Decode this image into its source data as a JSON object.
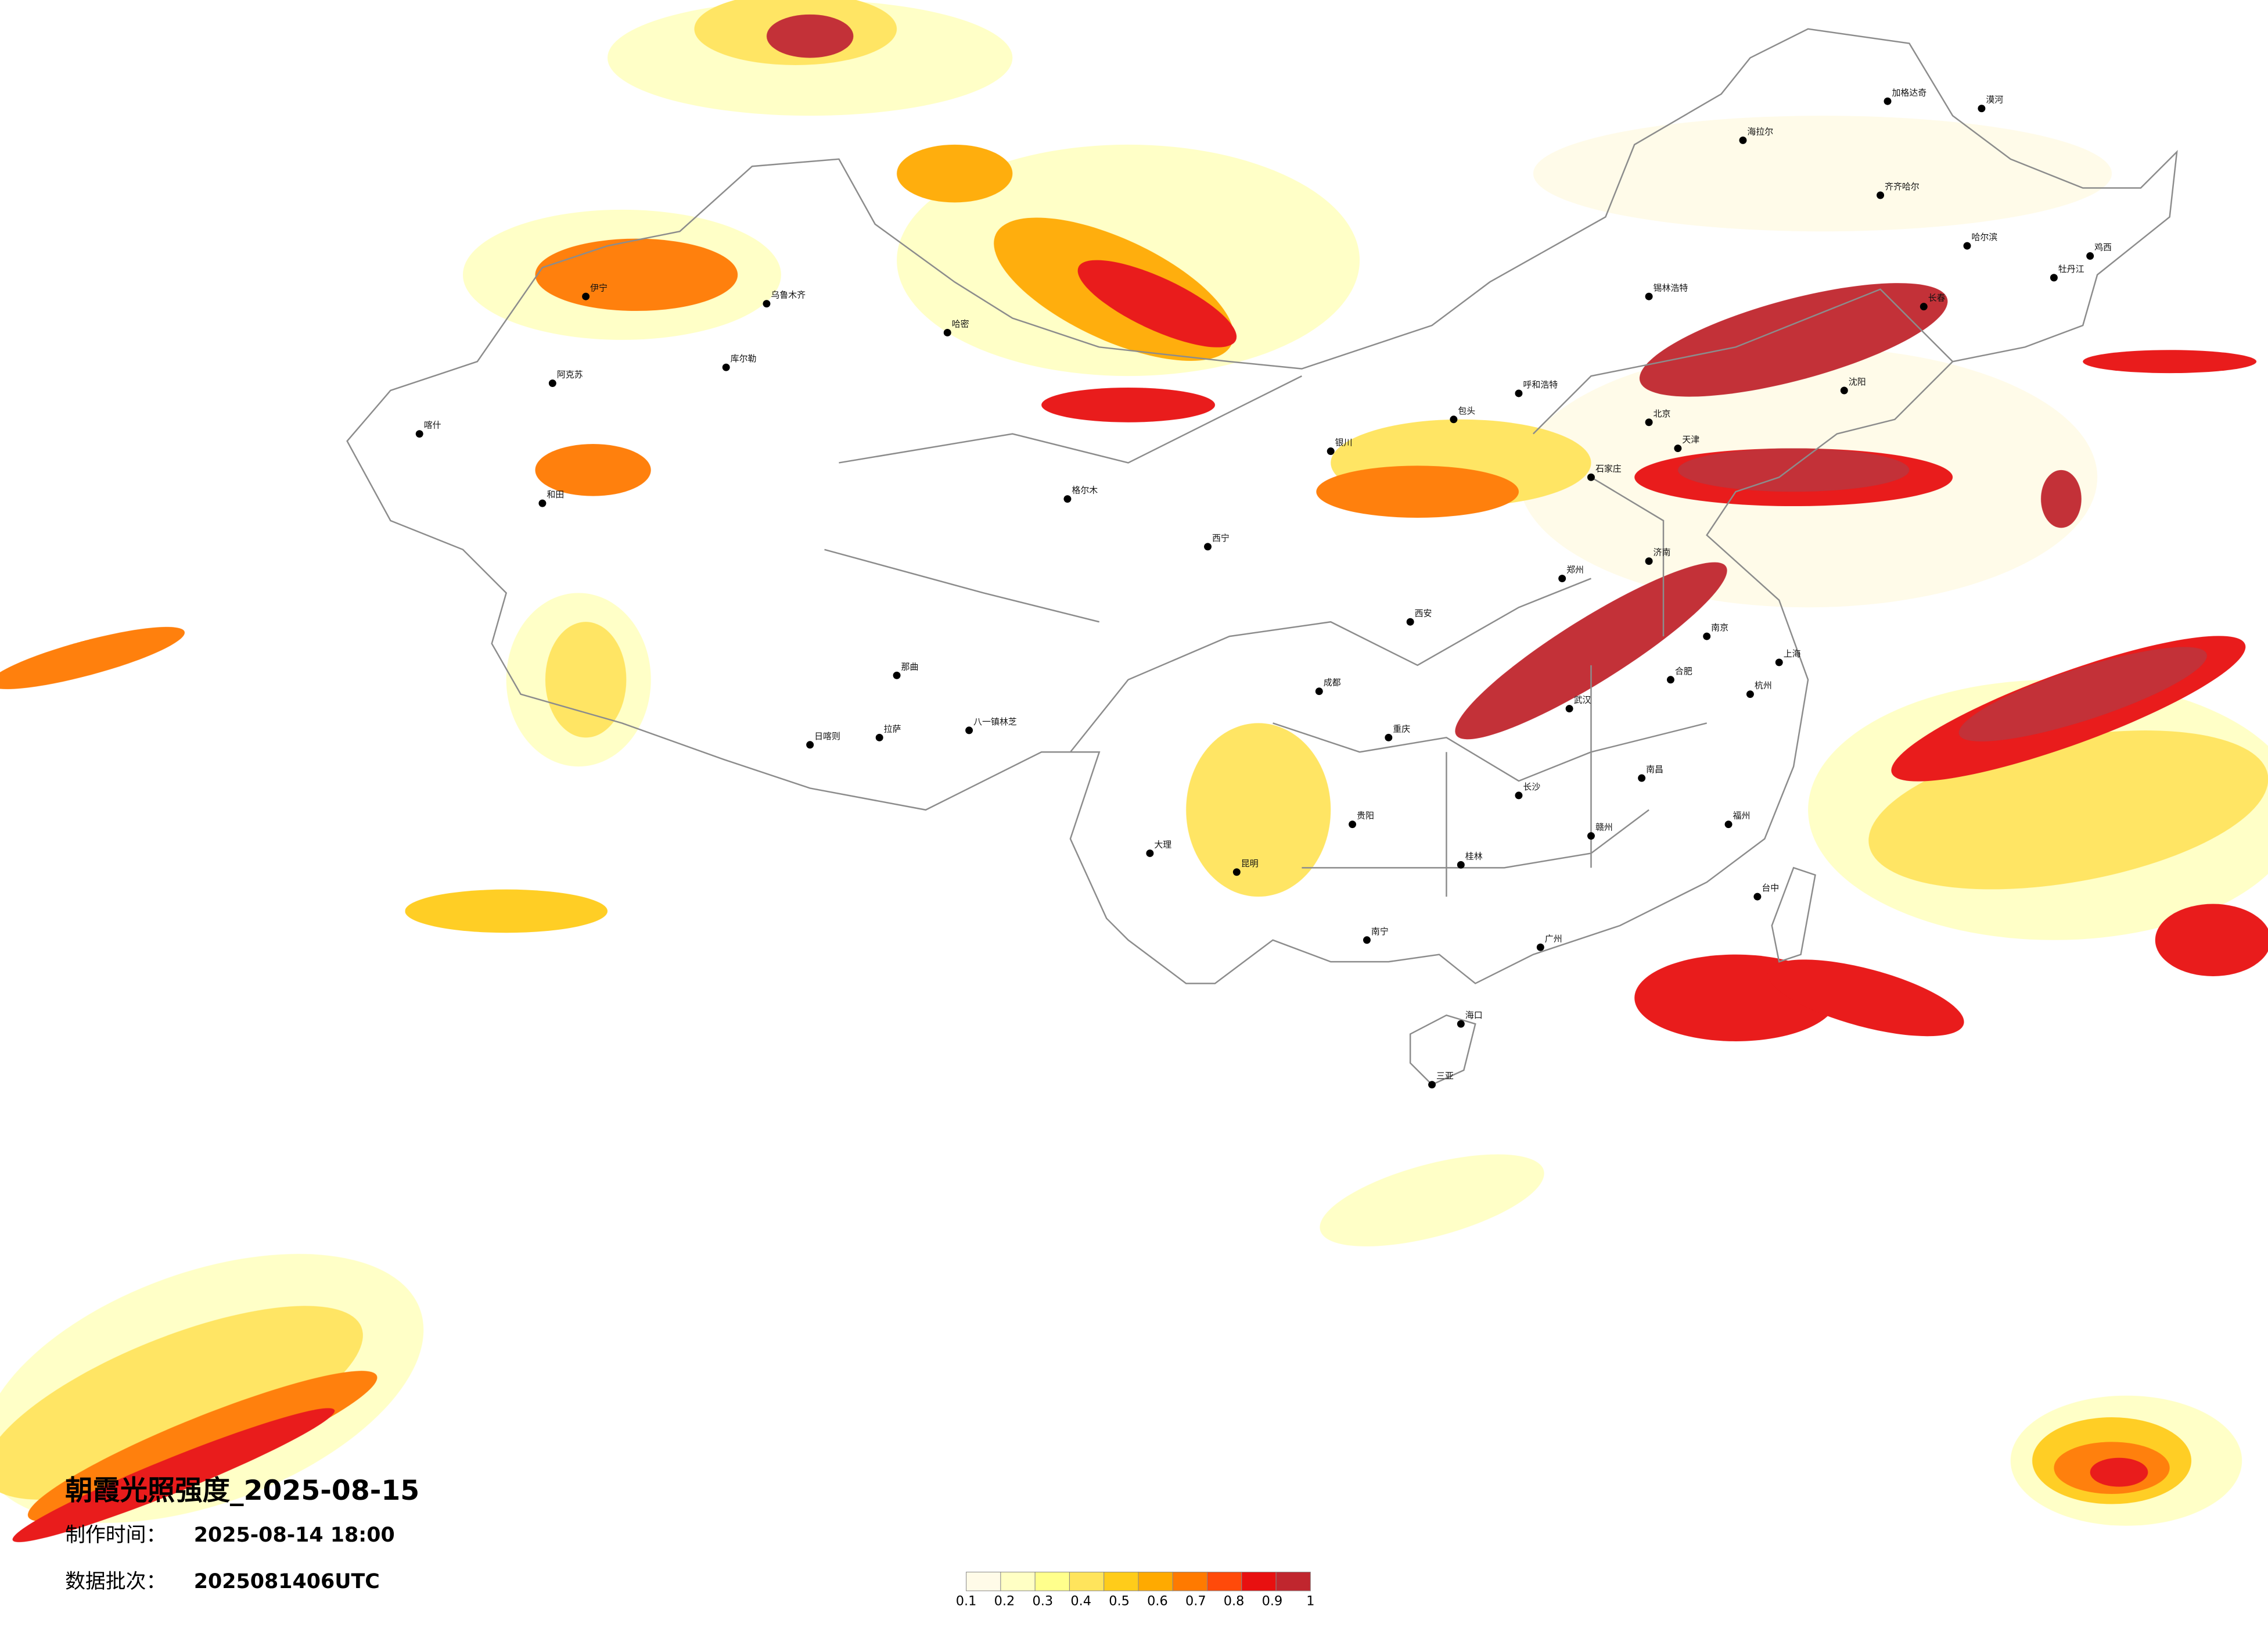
{
  "title": "朝霞光照强度_2025-08-15",
  "production_label": "制作时间：",
  "production_time": "2025-08-14 18:00",
  "batch_label": "数据批次：",
  "batch": "2025081406UTC",
  "legend": {
    "ticks": [
      0.1,
      0.2,
      0.3,
      0.4,
      0.5,
      0.6,
      0.7,
      0.8,
      0.9,
      1
    ],
    "colors": [
      "#fffbe8",
      "#ffffc4",
      "#ffff8c",
      "#ffe45c",
      "#ffcc1a",
      "#ffaa00",
      "#ff7a00",
      "#ff4a0a",
      "#e81010",
      "#c0262e"
    ]
  },
  "cities": [
    "乌鲁木齐",
    "伊宁",
    "喀什",
    "和田",
    "阿克苏",
    "哈密",
    "库尔勒",
    "拉萨",
    "日喀则",
    "那曲",
    "八一镇林芝",
    "西宁",
    "格尔木",
    "银川",
    "呼和浩特",
    "包头",
    "北京",
    "天津",
    "石家庄",
    "郑州",
    "西安",
    "成都",
    "重庆",
    "贵阳",
    "昆明",
    "南宁",
    "广州",
    "海口",
    "三亚",
    "长沙",
    "武汉",
    "南京",
    "上海",
    "杭州",
    "福州",
    "南昌",
    "合肥",
    "济南",
    "哈尔滨",
    "长春",
    "沈阳",
    "齐齐哈尔",
    "漠河",
    "加格达奇",
    "海拉尔",
    "锡林浩特",
    "鸡西",
    "牡丹江",
    "台中",
    "大理",
    "桂林",
    "赣州"
  ]
}
